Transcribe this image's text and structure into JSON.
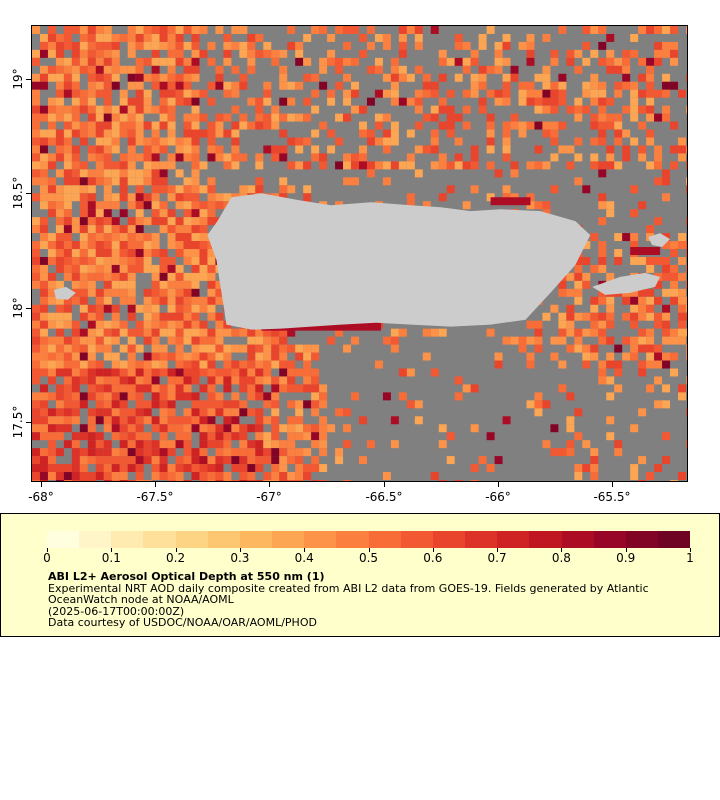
{
  "map": {
    "x_tick_labels": [
      "-68°",
      "-67.5°",
      "-67°",
      "-66.5°",
      "-66°",
      "-65.5°"
    ],
    "y_tick_labels": [
      "19°",
      "18.5°",
      "18°",
      "17.5°"
    ],
    "colors": {
      "no_data": "#808080",
      "land": "#cccccc",
      "background_legend": "#ffffcc"
    }
  },
  "colorbar": {
    "tick_labels": [
      "0",
      "0.1",
      "0.2",
      "0.3",
      "0.4",
      "0.5",
      "0.6",
      "0.7",
      "0.8",
      "0.9",
      "1"
    ],
    "range": [
      0,
      1
    ],
    "colors": [
      "#ffffe0",
      "#fff5c8",
      "#ffebb0",
      "#ffe09a",
      "#fdd484",
      "#fdc670",
      "#fdb75f",
      "#fca552",
      "#fc9348",
      "#fb8040",
      "#f86c38",
      "#f25832",
      "#e9442c",
      "#dd3227",
      "#cf2323",
      "#bf1622",
      "#ac0c24",
      "#970626",
      "#810426",
      "#6e0324"
    ]
  },
  "legend": {
    "title": "ABI L2+ Aerosol Optical Depth at 550 nm (1)",
    "line1": "Experimental NRT AOD daily composite created from ABI L2 data from GOES-19. Fields generated by Atlantic",
    "line2": "OceanWatch node at NOAA/AOML",
    "line3": "(2025-06-17T00:00:00Z)",
    "line4": "Data courtesy of USDOC/NOAA/OAR/AOML/PHOD"
  }
}
